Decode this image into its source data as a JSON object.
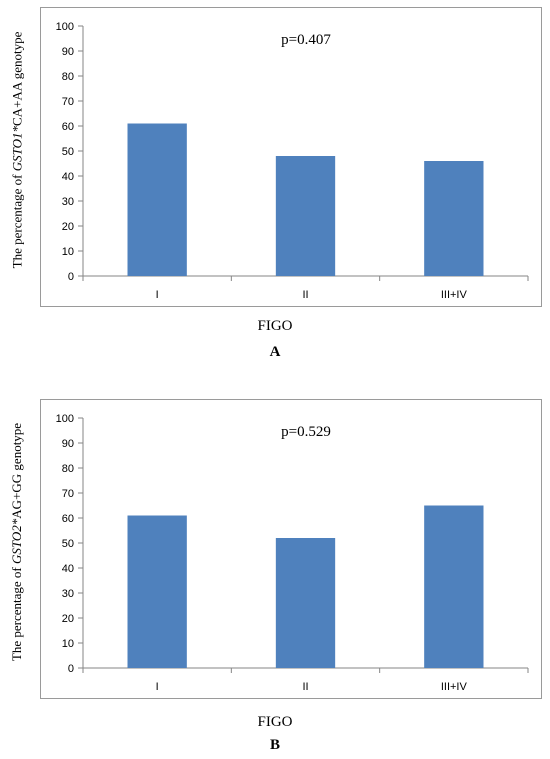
{
  "chart_data": [
    {
      "type": "bar",
      "panel": "A",
      "annotation": "p=0.407",
      "categories": [
        "I",
        "II",
        "III+IV"
      ],
      "values": [
        61,
        48,
        46
      ],
      "xlabel": "FIGO",
      "ylabel_prefix": "The percentage of ",
      "ylabel_gene": "GSTO1*",
      "ylabel_suffix": "CA+AA genotype",
      "ylim": [
        0,
        100
      ],
      "yticks": [
        0,
        10,
        20,
        30,
        40,
        50,
        60,
        70,
        80,
        90,
        100
      ],
      "bar_color": "#4f81bd",
      "grid": false,
      "legend": "none"
    },
    {
      "type": "bar",
      "panel": "B",
      "annotation": "p=0.529",
      "categories": [
        "I",
        "II",
        "III+IV"
      ],
      "values": [
        61,
        52,
        65
      ],
      "xlabel": "FIGO",
      "ylabel_prefix": "The percentage of ",
      "ylabel_gene": "GSTO2*",
      "ylabel_suffix": "AG+GG genotype",
      "ylim": [
        0,
        100
      ],
      "yticks": [
        0,
        10,
        20,
        30,
        40,
        50,
        60,
        70,
        80,
        90,
        100
      ],
      "bar_color": "#4f81bd",
      "grid": false,
      "legend": "none"
    }
  ]
}
